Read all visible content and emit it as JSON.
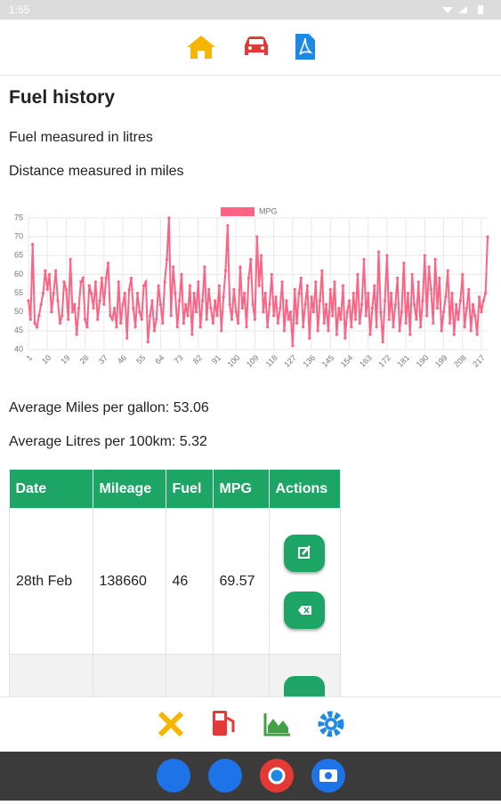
{
  "status_bar": {
    "time": "1:55"
  },
  "page": {
    "title": "Fuel history",
    "lines": [
      "Fuel measured in litres",
      "Distance measured in miles"
    ],
    "stats": [
      "Average Miles per gallon: 53.06",
      "Average Litres per 100km: 5.32"
    ]
  },
  "chart_data": {
    "type": "line",
    "categories": [
      "1",
      null,
      null,
      null,
      null,
      null,
      null,
      null,
      null,
      "10",
      null,
      null,
      null,
      null,
      null,
      null,
      null,
      null,
      "19",
      null,
      null,
      null,
      null,
      null,
      null,
      null,
      null,
      "28",
      null,
      null,
      null,
      null,
      null,
      null,
      null,
      null,
      "37",
      null,
      null,
      null,
      null,
      null,
      null,
      null,
      null,
      "46",
      null,
      null,
      null,
      null,
      null,
      null,
      null,
      null,
      "55",
      null,
      null,
      null,
      null,
      null,
      null,
      null,
      null,
      "64",
      null,
      null,
      null,
      null,
      null,
      null,
      null,
      null,
      "73",
      null,
      null,
      null,
      null,
      null,
      null,
      null,
      null,
      "82",
      null,
      null,
      null,
      null,
      null,
      null,
      null,
      null,
      "91",
      null,
      null,
      null,
      null,
      null,
      null,
      null,
      null,
      "100",
      null,
      null,
      null,
      null,
      null,
      null,
      null,
      null,
      "109",
      null,
      null,
      null,
      null,
      null,
      null,
      null,
      null,
      "118",
      null,
      null,
      null,
      null,
      null,
      null,
      null,
      null,
      "127",
      null,
      null,
      null,
      null,
      null,
      null,
      null,
      null,
      "136",
      null,
      null,
      null,
      null,
      null,
      null,
      null,
      null,
      "145",
      null,
      null,
      null,
      null,
      null,
      null,
      null,
      null,
      "154",
      null,
      null,
      null,
      null,
      null,
      null,
      null,
      null,
      "163",
      null,
      null,
      null,
      null,
      null,
      null,
      null,
      null,
      "172",
      null,
      null,
      null,
      null,
      null,
      null,
      null,
      null,
      "181",
      null,
      null,
      null,
      null,
      null,
      null,
      null,
      null,
      "190",
      null,
      null,
      null,
      null,
      null,
      null,
      null,
      null,
      "199",
      null,
      null,
      null,
      null,
      null,
      null,
      null,
      null,
      "208",
      null,
      null,
      null,
      null,
      null,
      null,
      null,
      null,
      "217",
      null,
      null,
      null
    ],
    "series": [
      {
        "name": "MPG",
        "color": "#ff6384",
        "values": [
          53,
          48,
          68,
          47,
          46,
          49,
          52,
          55,
          61,
          56,
          60,
          50,
          55,
          61,
          53,
          47,
          49,
          58,
          56,
          48,
          64,
          50,
          52,
          44,
          51,
          58,
          59,
          48,
          46,
          57,
          55,
          51,
          58,
          48,
          53,
          59,
          52,
          59,
          63,
          49,
          48,
          51,
          46,
          58,
          47,
          52,
          55,
          43,
          56,
          59,
          51,
          46,
          55,
          50,
          48,
          57,
          58,
          42,
          49,
          53,
          45,
          48,
          57,
          52,
          47,
          58,
          64,
          75,
          49,
          62,
          55,
          46,
          53,
          60,
          47,
          52,
          49,
          57,
          44,
          55,
          50,
          58,
          46,
          53,
          62,
          48,
          56,
          51,
          47,
          53,
          49,
          57,
          45,
          54,
          61,
          73,
          52,
          48,
          56,
          50,
          47,
          62,
          51,
          55,
          46,
          59,
          64,
          52,
          48,
          70,
          57,
          65,
          50,
          55,
          46,
          52,
          60,
          49,
          54,
          47,
          51,
          58,
          45,
          53,
          48,
          50,
          41,
          56,
          47,
          55,
          59,
          46,
          52,
          57,
          43,
          54,
          50,
          58,
          45,
          53,
          61,
          47,
          52,
          45,
          56,
          49,
          58,
          44,
          51,
          48,
          57,
          43,
          50,
          53,
          46,
          55,
          48,
          60,
          47,
          52,
          64,
          49,
          55,
          44,
          51,
          57,
          46,
          66,
          50,
          42,
          53,
          65,
          48,
          55,
          46,
          52,
          59,
          45,
          50,
          63,
          47,
          55,
          44,
          60,
          52,
          48,
          58,
          46,
          53,
          65,
          49,
          62,
          56,
          47,
          64,
          51,
          59,
          45,
          50,
          54,
          61,
          47,
          55,
          44,
          52,
          48,
          53,
          60,
          46,
          51,
          56,
          45,
          52,
          49,
          44,
          54,
          50,
          53,
          55,
          70
        ]
      }
    ],
    "ylim": [
      40,
      75
    ],
    "yticks": [
      40,
      45,
      50,
      55,
      60,
      65,
      70,
      75
    ],
    "grid": true,
    "legend": "top"
  },
  "table": {
    "columns": [
      "Date",
      "Mileage",
      "Fuel",
      "MPG",
      "Actions"
    ],
    "rows": [
      [
        "28th Feb",
        "138660",
        "46",
        "69.57"
      ]
    ]
  }
}
